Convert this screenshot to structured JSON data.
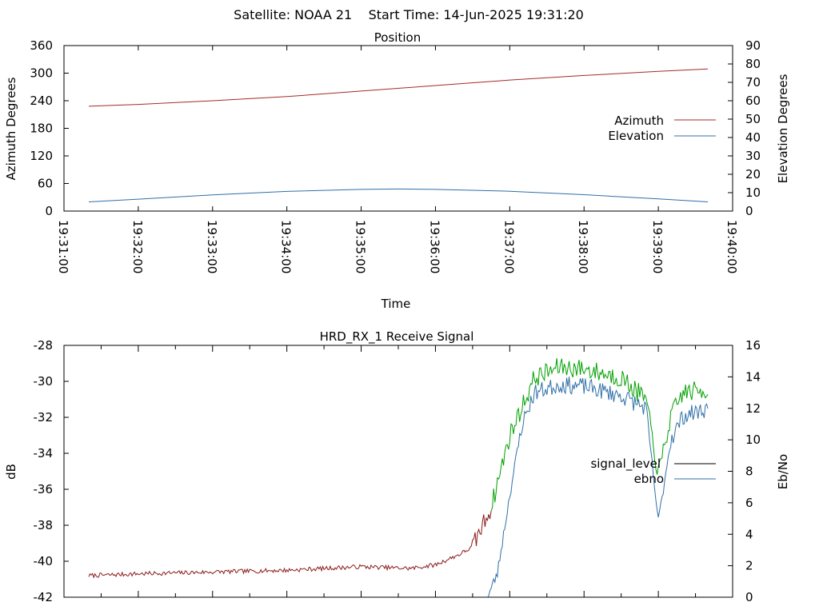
{
  "figure_title": "Satellite: NOAA 21    Start Time: 14-Jun-2025 19:31:20",
  "colors": {
    "azimuth": "#a52a2a",
    "elevation": "#2f6fa8",
    "signal_level_key": "#000000",
    "signal_level_trace": "#8b1a1a",
    "ebno": "#2f6fa8",
    "green_trace": "#00a000"
  },
  "chart_data": [
    {
      "type": "line",
      "title": "Position",
      "xlabel": "Time",
      "ylabel": "Azimuth Degrees",
      "y2label": "Elevation Degrees",
      "x_ticks": [
        "19:31:00",
        "19:32:00",
        "19:33:00",
        "19:34:00",
        "19:35:00",
        "19:36:00",
        "19:37:00",
        "19:38:00",
        "19:39:00",
        "19:40:00"
      ],
      "xlim": [
        "19:31:00",
        "19:40:00"
      ],
      "ylim": [
        0,
        360
      ],
      "y_ticks": [
        "0",
        "60",
        "120",
        "180",
        "240",
        "300",
        "360"
      ],
      "y2lim": [
        0,
        90
      ],
      "y2_ticks": [
        "0",
        "10",
        "20",
        "30",
        "40",
        "50",
        "60",
        "70",
        "80",
        "90"
      ],
      "legend_position": "right",
      "series": [
        {
          "name": "Azimuth",
          "axis": "y",
          "x": [
            "19:31:20",
            "19:32:00",
            "19:33:00",
            "19:34:00",
            "19:35:00",
            "19:36:00",
            "19:37:00",
            "19:38:00",
            "19:39:00",
            "19:39:40"
          ],
          "values": [
            228,
            232,
            240,
            249,
            261,
            273,
            285,
            295,
            304,
            309
          ]
        },
        {
          "name": "Elevation",
          "axis": "y2",
          "x": [
            "19:31:20",
            "19:32:00",
            "19:33:00",
            "19:34:00",
            "19:35:00",
            "19:35:30",
            "19:36:00",
            "19:37:00",
            "19:38:00",
            "19:39:00",
            "19:39:40"
          ],
          "values": [
            5,
            6.5,
            8.8,
            10.7,
            11.8,
            12,
            11.8,
            10.8,
            8.9,
            6.6,
            5
          ]
        }
      ]
    },
    {
      "type": "line",
      "title": "HRD_RX_1 Receive Signal",
      "ylabel": "dB",
      "y2label": "Eb/No",
      "ylim": [
        -42,
        -28
      ],
      "y_ticks": [
        "-42",
        "-40",
        "-38",
        "-36",
        "-34",
        "-32",
        "-30",
        "-28"
      ],
      "y2lim": [
        0,
        16
      ],
      "y2_ticks": [
        "0",
        "2",
        "4",
        "6",
        "8",
        "10",
        "12",
        "14",
        "16"
      ],
      "xlim": [
        "19:31:00",
        "19:40:00"
      ],
      "legend_position": "right",
      "legend": [
        "signal_level",
        "ebno"
      ],
      "series": [
        {
          "name": "signal_level",
          "axis": "y",
          "x": [
            "19:31:20",
            "19:32:00",
            "19:33:00",
            "19:34:00",
            "19:35:00",
            "19:35:40",
            "19:36:00",
            "19:36:20",
            "19:36:30",
            "19:36:45",
            "19:37:00",
            "19:37:20",
            "19:37:40",
            "19:38:00",
            "19:38:30",
            "19:38:50",
            "19:39:00",
            "19:39:10",
            "19:39:20",
            "19:39:40"
          ],
          "values": [
            -40.8,
            -40.7,
            -40.6,
            -40.5,
            -40.3,
            -40.4,
            -40.2,
            -39.6,
            -39.2,
            -37,
            -33,
            -29.8,
            -29.2,
            -29.3,
            -29.8,
            -31,
            -35.2,
            -32,
            -30.6,
            -30.5
          ]
        },
        {
          "name": "ebno",
          "axis": "y2",
          "x": [
            "19:36:42",
            "19:36:50",
            "19:37:00",
            "19:37:10",
            "19:37:20",
            "19:37:40",
            "19:38:00",
            "19:38:30",
            "19:38:50",
            "19:39:00",
            "19:39:10",
            "19:39:20",
            "19:39:40"
          ],
          "values": [
            0,
            1.5,
            6.5,
            11,
            13,
            13.5,
            13.4,
            12.8,
            12,
            4.8,
            10,
            11.5,
            12
          ]
        }
      ]
    }
  ]
}
